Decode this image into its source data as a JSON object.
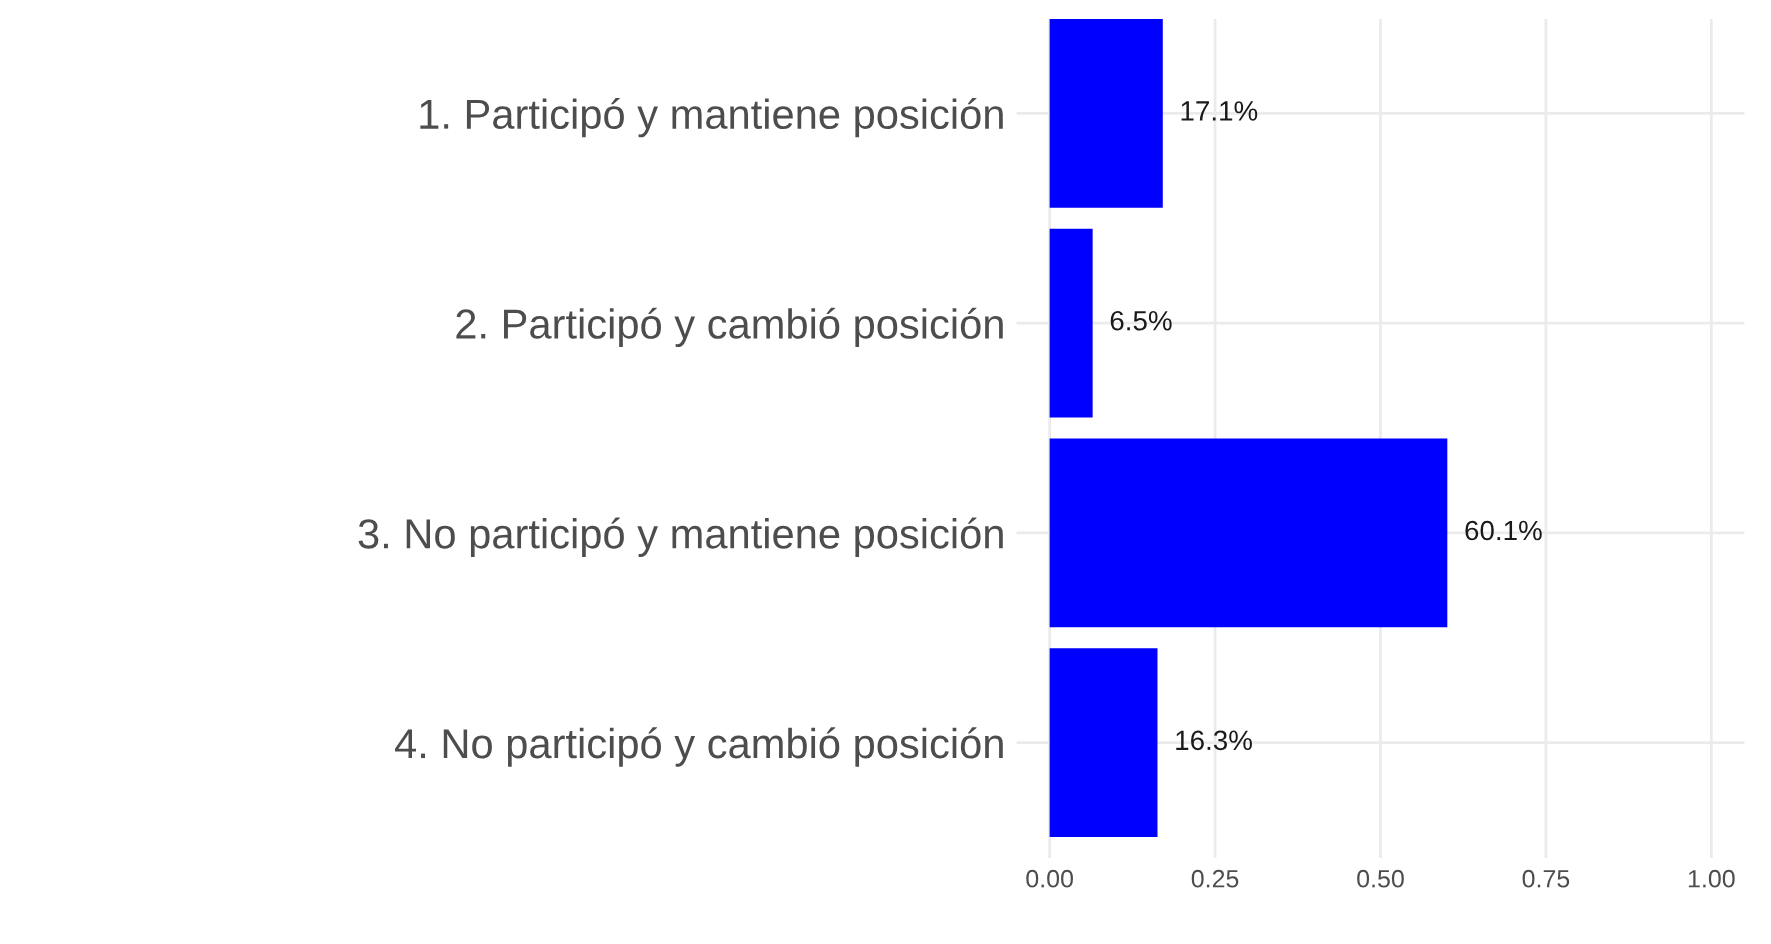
{
  "chart_data": {
    "type": "bar",
    "orientation": "horizontal",
    "categories": [
      "1. Participó y mantiene posición",
      "2. Participó y cambió posición",
      "3. No participó y mantiene posición",
      "4. No participó y cambió posición"
    ],
    "values": [
      0.171,
      0.065,
      0.601,
      0.163
    ],
    "value_labels": [
      "17.1%",
      "6.5%",
      "60.1%",
      "16.3%"
    ],
    "color": "#0000ff",
    "xlim": [
      -0.05,
      1.05
    ],
    "xticks": [
      {
        "value": 0,
        "label": "0.00"
      },
      {
        "value": 0.25,
        "label": "0.25"
      },
      {
        "value": 0.5,
        "label": "0.50"
      },
      {
        "value": 0.75,
        "label": "0.75"
      },
      {
        "value": 1,
        "label": "1.00"
      }
    ],
    "grid": true
  }
}
